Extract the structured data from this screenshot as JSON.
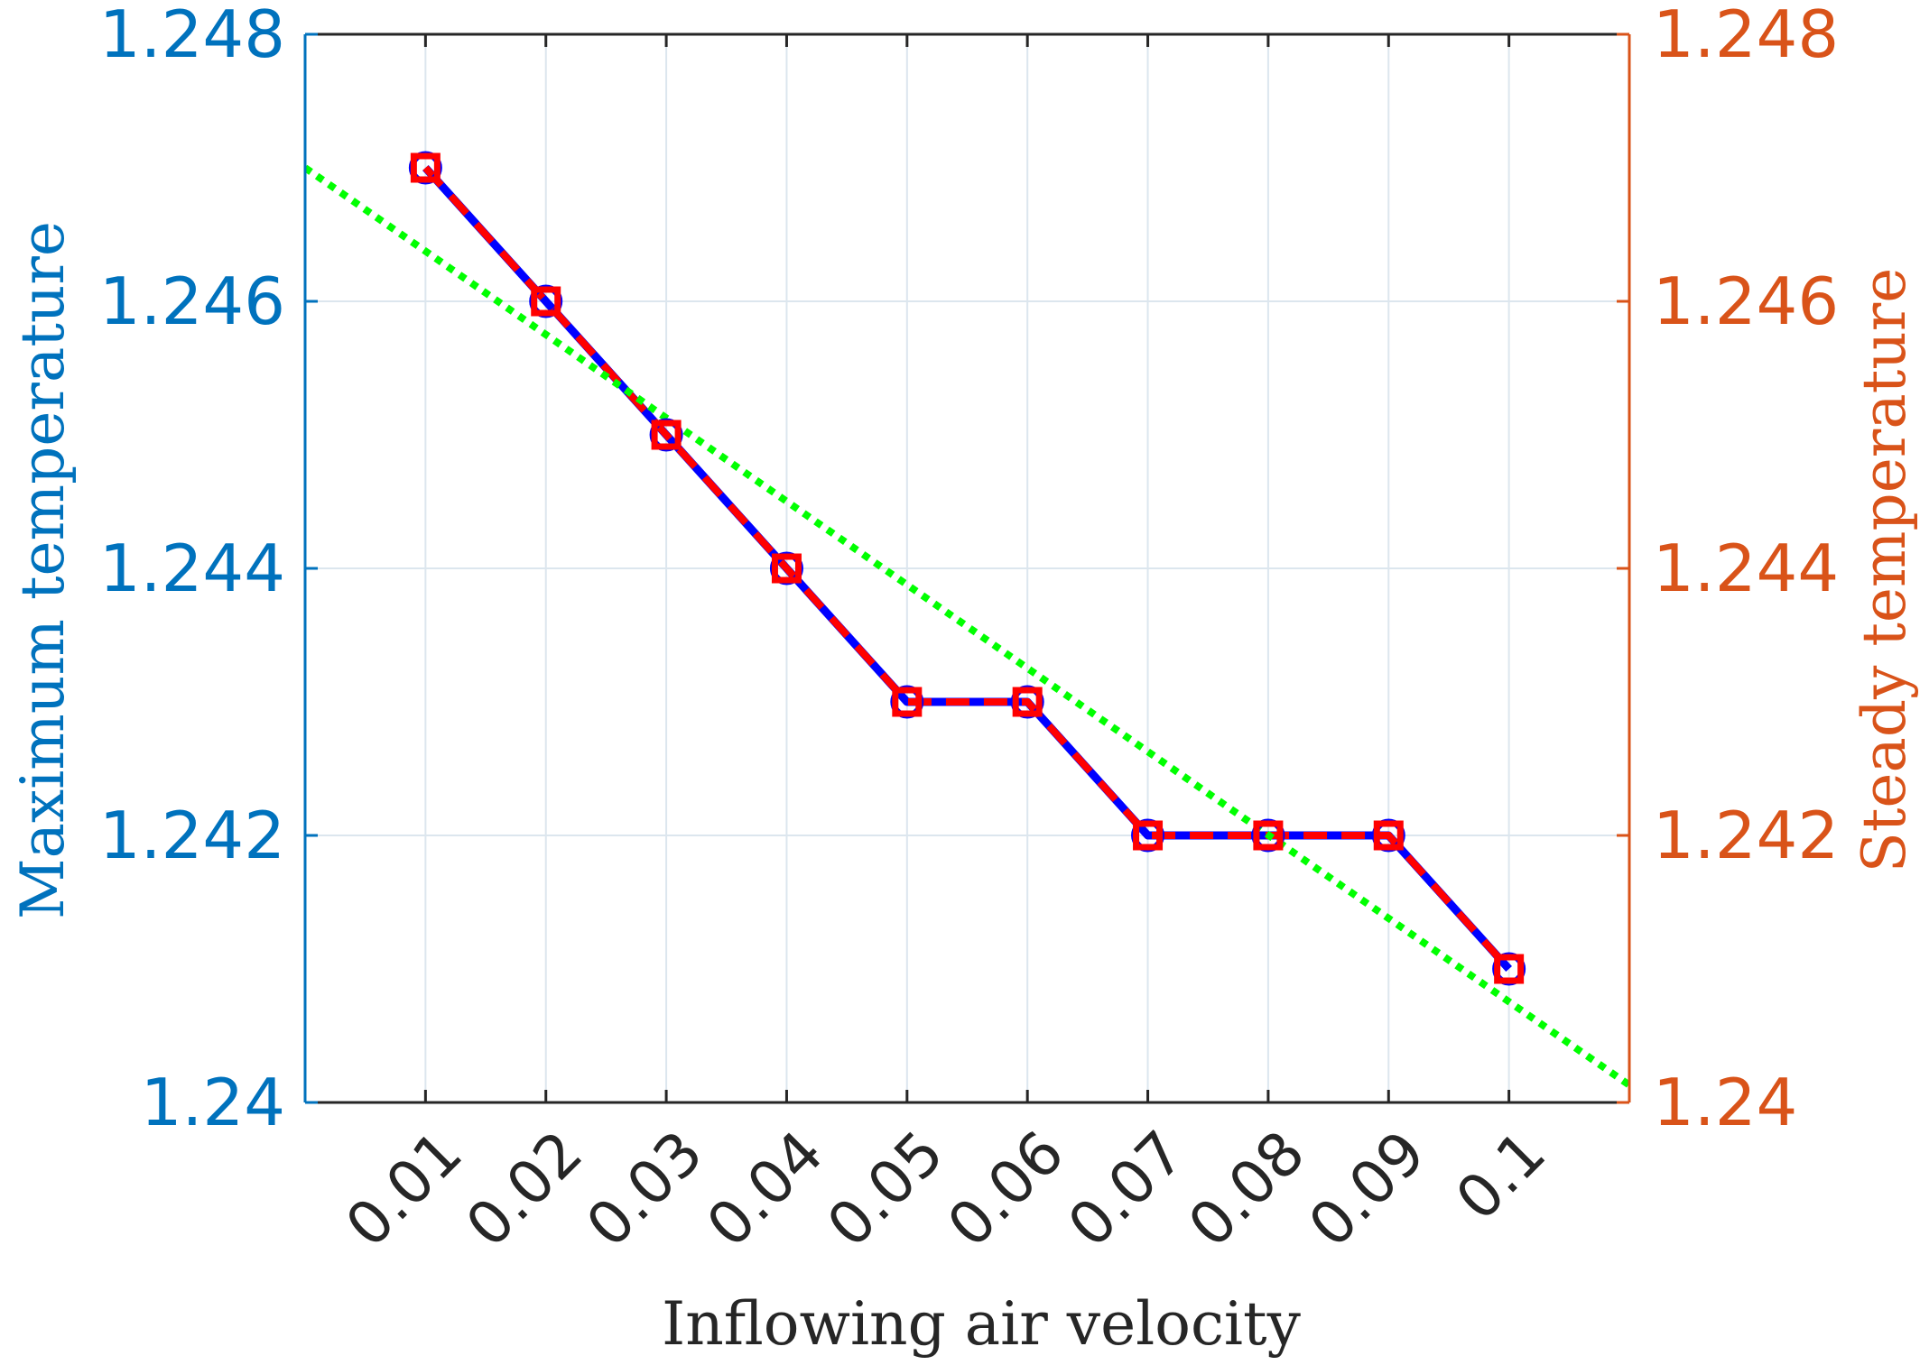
{
  "chart_data": {
    "type": "line",
    "xlabel": "Inflowing air velocity",
    "ylabel_left": "Maximum temperature",
    "ylabel_right": "Steady temperature",
    "categories": [
      "0.01",
      "0.02",
      "0.03",
      "0.04",
      "0.05",
      "0.06",
      "0.07",
      "0.08",
      "0.09",
      "0.1"
    ],
    "x": [
      0.01,
      0.02,
      0.03,
      0.04,
      0.05,
      0.06,
      0.07,
      0.08,
      0.09,
      0.1
    ],
    "xlim": [
      0.0,
      0.11
    ],
    "ylim_left": [
      1.24,
      1.248
    ],
    "ylim_right": [
      1.24,
      1.248
    ],
    "yticks_left": [
      "1.24",
      "1.242",
      "1.244",
      "1.246",
      "1.248"
    ],
    "yticks_right": [
      "1.24",
      "1.242",
      "1.244",
      "1.246",
      "1.248"
    ],
    "ytick_values": [
      1.24,
      1.242,
      1.244,
      1.246,
      1.248
    ],
    "grid": true,
    "series": [
      {
        "axis": "left",
        "style": "solid line with circle markers",
        "color": "#0000FF",
        "values": [
          1.247,
          1.246,
          1.245,
          1.244,
          1.243,
          1.243,
          1.242,
          1.242,
          1.242,
          1.241
        ]
      },
      {
        "axis": "right",
        "style": "dashed line with square markers",
        "color": "#FF0000",
        "values": [
          1.247,
          1.246,
          1.245,
          1.244,
          1.243,
          1.243,
          1.242,
          1.242,
          1.242,
          1.241
        ]
      },
      {
        "axis": "left",
        "style": "dotted linear trend line",
        "color": "#00FF00",
        "x": [
          0.0,
          0.11
        ],
        "values": [
          1.247,
          1.24013
        ]
      }
    ],
    "colors": {
      "left_axis": "#0072BD",
      "right_axis": "#D95319",
      "grid": "#DCE6EE",
      "x_axis": "#262626"
    }
  }
}
